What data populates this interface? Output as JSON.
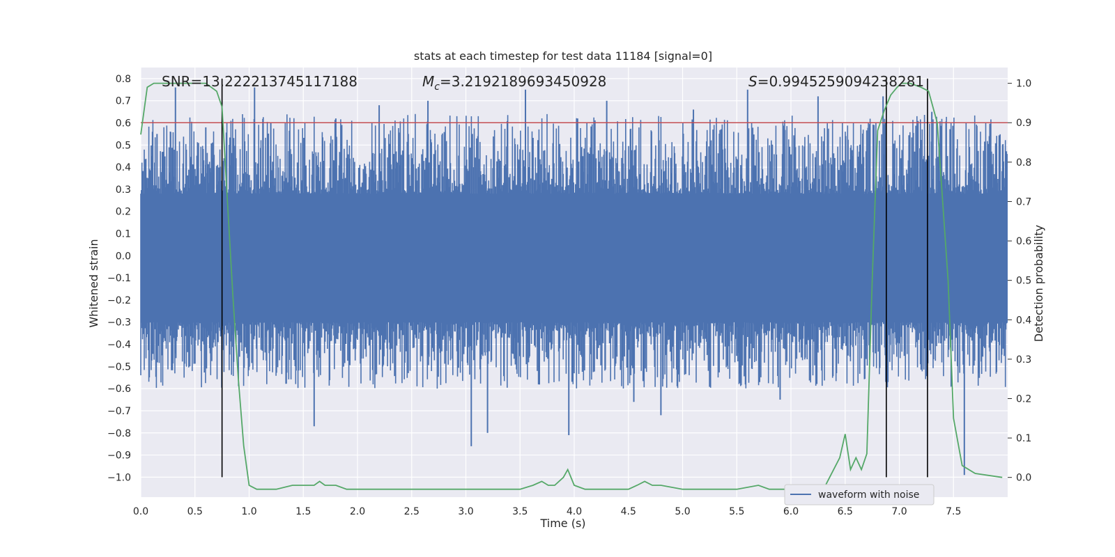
{
  "chart_data": {
    "type": "line",
    "title": "stats at each timestep for test data 11184 [signal=0]",
    "xlabel": "Time (s)",
    "ylabel": "Whitened strain",
    "y2label": "Detection probability",
    "xlim": [
      0.0,
      8.0
    ],
    "ylim": [
      -1.09,
      0.85
    ],
    "y2lim": [
      -0.05,
      1.04
    ],
    "grid": true,
    "x_ticks": [
      0.0,
      0.5,
      1.0,
      1.5,
      2.0,
      2.5,
      3.0,
      3.5,
      4.0,
      4.5,
      5.0,
      5.5,
      6.0,
      6.5,
      7.0,
      7.5
    ],
    "x_tick_labels": [
      "0.0",
      "0.5",
      "1.0",
      "1.5",
      "2.0",
      "2.5",
      "3.0",
      "3.5",
      "4.0",
      "4.5",
      "5.0",
      "5.5",
      "6.0",
      "6.5",
      "7.0",
      "7.5"
    ],
    "y_ticks": [
      0.8,
      0.7,
      0.6,
      0.5,
      0.4,
      0.3,
      0.2,
      0.1,
      0.0,
      -0.1,
      -0.2,
      -0.3,
      -0.4,
      -0.5,
      -0.6,
      -0.7,
      -0.8,
      -0.9,
      -1.0
    ],
    "y_tick_labels": [
      "0.8",
      "0.7",
      "0.6",
      "0.5",
      "0.4",
      "0.3",
      "0.2",
      "0.1",
      "0.0",
      "−0.1",
      "−0.2",
      "−0.3",
      "−0.4",
      "−0.5",
      "−0.6",
      "−0.7",
      "−0.8",
      "−0.9",
      "−1.0"
    ],
    "y2_ticks": [
      1.0,
      0.9,
      0.8,
      0.7,
      0.6,
      0.5,
      0.4,
      0.3,
      0.2,
      0.1,
      0.0
    ],
    "y2_tick_labels": [
      "1.0",
      "0.9",
      "0.8",
      "0.7",
      "0.6",
      "0.5",
      "0.4",
      "0.3",
      "0.2",
      "0.1",
      "0.0"
    ],
    "annotations": {
      "snr": "SNR=13.222213745117188",
      "mc_symbol": "M",
      "mc_sub": "c",
      "mc_value": "=3.2192189693450928",
      "s_symbol": "S",
      "s_value": "=0.9945259094238281"
    },
    "series": [
      {
        "name": "waveform with noise",
        "color": "#4c72b0",
        "axis": "left",
        "kind": "noise-envelope",
        "core_range": [
          -0.3,
          0.28
        ],
        "spike_times": [
          0.15,
          0.32,
          0.6,
          1.05,
          1.2,
          1.6,
          1.8,
          2.2,
          2.65,
          3.05,
          3.2,
          3.55,
          3.95,
          4.3,
          4.55,
          4.8,
          5.1,
          5.6,
          5.9,
          6.25,
          6.85,
          7.3,
          7.6
        ],
        "spike_values": [
          0.55,
          0.76,
          0.58,
          0.76,
          0.6,
          -0.77,
          0.62,
          0.68,
          0.7,
          -0.86,
          -0.8,
          0.75,
          -0.81,
          0.7,
          -0.66,
          -0.72,
          0.66,
          0.75,
          -0.65,
          0.72,
          0.72,
          0.65,
          -0.99
        ]
      },
      {
        "name": "",
        "color": "#55a868",
        "axis": "right",
        "x": [
          0.0,
          0.06,
          0.12,
          0.2,
          0.3,
          0.4,
          0.5,
          0.6,
          0.65,
          0.7,
          0.75,
          0.8,
          0.85,
          0.9,
          0.95,
          1.0,
          1.07,
          1.12,
          1.25,
          1.4,
          1.5,
          1.6,
          1.65,
          1.7,
          1.8,
          1.9,
          2.0,
          2.5,
          3.0,
          3.5,
          3.62,
          3.7,
          3.76,
          3.82,
          3.9,
          3.94,
          4.0,
          4.1,
          4.2,
          4.5,
          4.58,
          4.65,
          4.72,
          4.8,
          5.0,
          5.5,
          5.7,
          5.8,
          6.0,
          6.2,
          6.3,
          6.45,
          6.5,
          6.55,
          6.6,
          6.65,
          6.7,
          6.75,
          6.8,
          6.86,
          6.92,
          6.98,
          7.02,
          7.1,
          7.2,
          7.27,
          7.35,
          7.45,
          7.5,
          7.58,
          7.7,
          7.95
        ],
        "y": [
          0.87,
          0.99,
          1.0,
          1.0,
          1.0,
          1.0,
          1.0,
          1.0,
          0.99,
          0.98,
          0.94,
          0.7,
          0.46,
          0.25,
          0.08,
          -0.02,
          -0.03,
          -0.03,
          -0.03,
          -0.02,
          -0.02,
          -0.02,
          -0.01,
          -0.02,
          -0.02,
          -0.03,
          -0.03,
          -0.03,
          -0.03,
          -0.03,
          -0.02,
          -0.01,
          -0.02,
          -0.02,
          0.0,
          0.02,
          -0.02,
          -0.03,
          -0.03,
          -0.03,
          -0.02,
          -0.01,
          -0.02,
          -0.02,
          -0.03,
          -0.03,
          -0.02,
          -0.03,
          -0.03,
          -0.02,
          -0.03,
          0.05,
          0.11,
          0.02,
          0.05,
          0.02,
          0.06,
          0.5,
          0.88,
          0.93,
          0.97,
          0.99,
          1.0,
          1.0,
          0.99,
          0.98,
          0.9,
          0.5,
          0.15,
          0.03,
          0.01,
          0.0
        ]
      }
    ],
    "threshold_line": {
      "color": "#c44e52",
      "axis": "right",
      "value": 0.9
    },
    "vertical_markers": {
      "color": "#000000",
      "x": [
        0.75,
        6.88,
        7.26
      ],
      "y_range": [
        -1.0,
        0.8
      ]
    },
    "legend": {
      "position": "lower-right",
      "entries": [
        "waveform with noise"
      ]
    }
  }
}
